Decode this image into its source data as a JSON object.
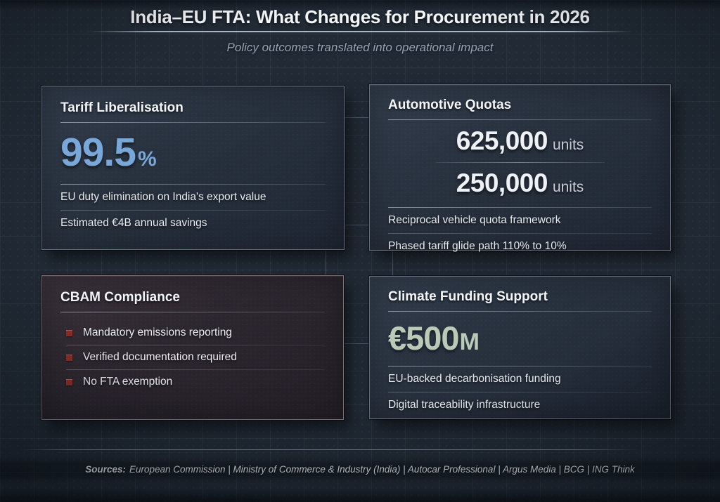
{
  "header": {
    "title": "India–EU FTA: What Changes for Procurement in 2026",
    "subtitle": "Policy outcomes translated into operational impact"
  },
  "cards": {
    "tariff": {
      "title": "Tariff Liberalisation",
      "stat_value": "99.5",
      "stat_unit": "%",
      "lines": [
        "EU duty elimination on India's export value",
        "Estimated €4B annual savings"
      ]
    },
    "quotas": {
      "title": "Automotive Quotas",
      "figures": [
        {
          "value": "625,000",
          "unit": "units"
        },
        {
          "value": "250,000",
          "unit": "units"
        }
      ],
      "lines": [
        "Reciprocal vehicle quota framework",
        "Phased tariff glide path 110% to 10%"
      ]
    },
    "cbam": {
      "title": "CBAM Compliance",
      "bullets": [
        "Mandatory emissions reporting",
        "Verified documentation required",
        "No FTA exemption"
      ]
    },
    "climate": {
      "title": "Climate Funding Support",
      "stat_value": "€500",
      "stat_unit": "M",
      "lines": [
        "EU-backed decarbonisation funding",
        "Digital traceability infrastructure"
      ]
    }
  },
  "footer": {
    "sources_label": "Sources:",
    "sources_text": "European Commission | Ministry of Commerce & Industry (India) | Autocar Professional | Argus Media | BCG | ING Think"
  },
  "colors": {
    "background": "#212a35",
    "accent_blue": "#79a7d9",
    "accent_green": "#b9cab6",
    "bullet_red": "#8e2e26"
  }
}
